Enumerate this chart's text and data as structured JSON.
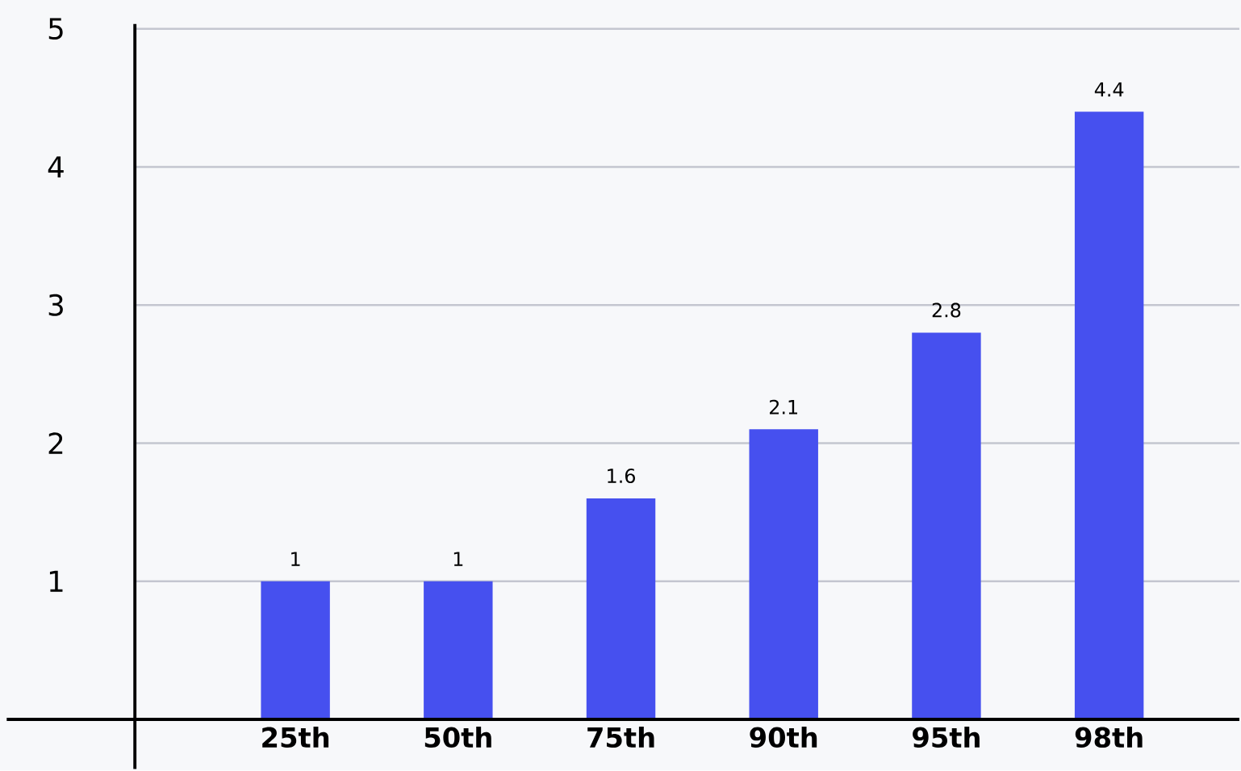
{
  "chart_data": {
    "type": "bar",
    "categories": [
      "25th",
      "50th",
      "75th",
      "90th",
      "95th",
      "98th"
    ],
    "values": [
      1,
      1,
      1.6,
      2.1,
      2.8,
      4.4
    ],
    "color": "#4650ef",
    "ylim": [
      0,
      5
    ],
    "yticks": [
      1,
      2,
      3,
      4,
      5
    ],
    "grid": "y",
    "data_labels": true
  }
}
